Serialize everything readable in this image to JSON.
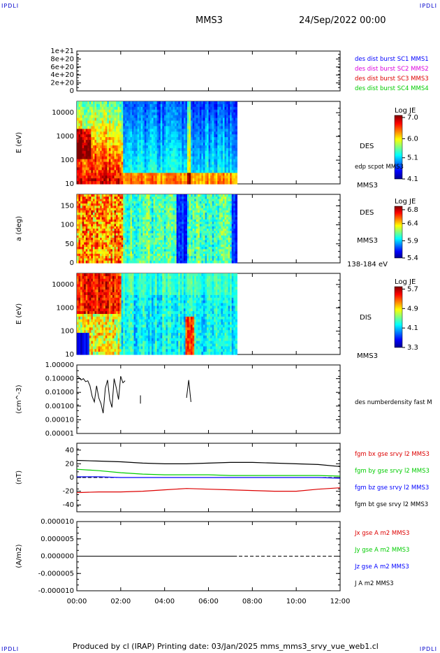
{
  "corners": {
    "tl": "IPDLI",
    "tr": "IPDLI",
    "bl": "IPDLI",
    "br": "IPDLI"
  },
  "header": {
    "spacecraft": "MMS3",
    "date": "24/Sep/2022 00:00"
  },
  "footer": {
    "text": "Produced by cl (IRAP)   Printing date: 03/Jan/2025   mms_mms3_srvy_vue_web1.cl"
  },
  "colors": {
    "c1": "#0000ff",
    "c2": "#dd00dd",
    "c3": "#dd0000",
    "c4": "#00cc00",
    "black": "#000000"
  },
  "time_axis": {
    "ticks": [
      "00:00",
      "02:00",
      "04:00",
      "06:00",
      "08:00",
      "10:00",
      "12:00"
    ],
    "range_hours": [
      0,
      12
    ]
  },
  "chart_data": [
    {
      "type": "line",
      "ylim": [
        0,
        1e+21
      ],
      "yticks": [
        "1e+21",
        "8e+20",
        "6e+20",
        "4e+20",
        "2e+20",
        "0"
      ],
      "ytick_values": [
        1e+21,
        8e+20,
        6e+20,
        4e+20,
        2e+20,
        0
      ],
      "legend": [
        {
          "text": "des dist burst SC1 MMS1",
          "color": "#0000ff"
        },
        {
          "text": "des dist burst SC2 MMS2",
          "color": "#dd00dd"
        },
        {
          "text": "des dist burst SC3 MMS3",
          "color": "#dd0000"
        },
        {
          "text": "des dist burst SC4 MMS4",
          "color": "#00cc00"
        }
      ],
      "series": [
        {
          "values_x": [
            0,
            12
          ],
          "values_y": [
            0,
            0
          ]
        }
      ]
    },
    {
      "type": "heatmap",
      "ylabel": "E (eV)",
      "yscale": "log",
      "ylim": [
        10,
        30000
      ],
      "yticks": [
        "10000",
        "1000",
        "100",
        "10"
      ],
      "ytick_values": [
        10000,
        1000,
        100,
        10
      ],
      "data_end_hours": 7.3,
      "instrument": "DES",
      "colorbar": {
        "title": "Log JE",
        "range": [
          4.1,
          7.1
        ],
        "ticks": [
          "7.0",
          "6.0",
          "5.1",
          "4.1"
        ],
        "tick_values": [
          7.0,
          6.0,
          5.1,
          4.1
        ]
      },
      "side_notes": [
        "edp scpot MMS3"
      ],
      "bottom_note": "MMS3"
    },
    {
      "type": "heatmap",
      "ylabel": "a (deg)",
      "ylim": [
        0,
        180
      ],
      "yticks": [
        "150",
        "100",
        "50",
        "0"
      ],
      "ytick_values": [
        150,
        100,
        50,
        0
      ],
      "data_end_hours": 7.3,
      "instrument": "DES",
      "spacecraft_note": "MMS3",
      "colorbar": {
        "title": "Log JE",
        "range": [
          5.4,
          6.9
        ],
        "ticks": [
          "6.8",
          "6.4",
          "5.9",
          "5.4"
        ],
        "tick_values": [
          6.8,
          6.4,
          5.9,
          5.4
        ]
      },
      "bottom_note": "138-184 eV"
    },
    {
      "type": "heatmap",
      "ylabel": "E (eV)",
      "yscale": "log",
      "ylim": [
        10,
        30000
      ],
      "yticks": [
        "10000",
        "1000",
        "100",
        "10"
      ],
      "ytick_values": [
        10000,
        1000,
        100,
        10
      ],
      "data_end_hours": 7.3,
      "instrument": "DIS",
      "colorbar": {
        "title": "Log JE",
        "range": [
          3.3,
          5.8
        ],
        "ticks": [
          "5.7",
          "4.9",
          "4.1",
          "3.3"
        ],
        "tick_values": [
          5.7,
          4.9,
          4.1,
          3.3
        ]
      },
      "bottom_note": "MMS3"
    },
    {
      "type": "line",
      "ylabel": "(cm^-3)",
      "yscale": "log",
      "ylim": [
        1e-05,
        1.0
      ],
      "yticks": [
        "1.00000",
        "0.10000",
        "0.01000",
        "0.00100",
        "0.00010",
        "0.00001"
      ],
      "ytick_values": [
        1.0,
        0.1,
        0.01,
        0.001,
        0.0001,
        1e-05
      ],
      "legend": [
        {
          "text": "des numberdensity fast M",
          "color": "#000000"
        }
      ],
      "series": [
        {
          "name": "des numberdensity fast M",
          "x": [
            0.0,
            0.1,
            0.2,
            0.3,
            0.4,
            0.5,
            0.6,
            0.7,
            0.8,
            0.9,
            1.0,
            1.1,
            1.2,
            1.3,
            1.4,
            1.5,
            1.6,
            1.7,
            1.8,
            1.9,
            2.0,
            2.1,
            2.2,
            5.0,
            5.1,
            5.2
          ],
          "y": [
            0.09,
            0.12,
            0.08,
            0.1,
            0.06,
            0.07,
            0.03,
            0.005,
            0.002,
            0.03,
            0.004,
            0.0015,
            0.0003,
            0.02,
            0.08,
            0.003,
            0.0008,
            0.1,
            0.02,
            0.003,
            0.15,
            0.05,
            0.07,
            0.004,
            0.08,
            0.002
          ]
        },
        {
          "name": "seg2",
          "x": [
            2.9,
            2.9
          ],
          "y": [
            0.006,
            0.0015
          ]
        }
      ]
    },
    {
      "type": "line",
      "ylabel": "(nT)",
      "ylim": [
        -50,
        50
      ],
      "yticks": [
        "40",
        "20",
        "0",
        "-20",
        "-40"
      ],
      "ytick_values": [
        40,
        20,
        0,
        -20,
        -40
      ],
      "legend": [
        {
          "text": "fgm bx gse srvy l2 MMS3",
          "color": "#dd0000"
        },
        {
          "text": "fgm by gse srvy l2 MMS3",
          "color": "#00cc00"
        },
        {
          "text": "fgm bz gse srvy l2 MMS3",
          "color": "#0000ff"
        },
        {
          "text": "fgm bt gse srvy l2 MMS3",
          "color": "#000000"
        }
      ],
      "x": [
        0,
        1,
        2,
        3,
        4,
        5,
        6,
        7,
        8,
        9,
        10,
        11,
        12
      ],
      "series": [
        {
          "name": "fgm bx gse srvy l2 MMS3",
          "color": "#dd0000",
          "values": [
            -22,
            -21,
            -21,
            -20,
            -18,
            -16,
            -17,
            -18,
            -19,
            -20,
            -20,
            -17,
            -15
          ]
        },
        {
          "name": "fgm by gse srvy l2 MMS3",
          "color": "#00cc00",
          "values": [
            12,
            10,
            7,
            5,
            4,
            4,
            4,
            3,
            3,
            3,
            3,
            3,
            2
          ]
        },
        {
          "name": "fgm bz gse srvy l2 MMS3",
          "color": "#0000ff",
          "values": [
            1,
            1,
            0,
            0,
            0,
            0,
            0,
            0,
            0,
            0,
            0,
            0,
            -1
          ]
        },
        {
          "name": "fgm bt gse srvy l2 MMS3",
          "color": "#000000",
          "values": [
            25,
            24,
            23,
            21,
            20,
            20,
            21,
            22,
            22,
            21,
            20,
            19,
            16
          ]
        }
      ]
    },
    {
      "type": "line",
      "ylabel": "(A/m2)",
      "ylim": [
        -1e-05,
        1e-05
      ],
      "yticks": [
        "0.000010",
        "0.000005",
        "0.000000",
        "-0.000005",
        "-0.000010"
      ],
      "ytick_values": [
        1e-05,
        5e-06,
        0,
        -5e-06,
        -1e-05
      ],
      "legend": [
        {
          "text": "Jx gse A m2 MMS3",
          "color": "#dd0000"
        },
        {
          "text": "Jy gse A m2 MMS3",
          "color": "#00cc00"
        },
        {
          "text": "Jz gse A m2 MMS3",
          "color": "#0000ff"
        },
        {
          "text": "J A m2 MMS3",
          "color": "#000000"
        }
      ],
      "x": [
        0,
        12
      ],
      "series": [
        {
          "name": "J A m2 MMS3",
          "values": [
            0,
            0
          ]
        }
      ]
    }
  ]
}
